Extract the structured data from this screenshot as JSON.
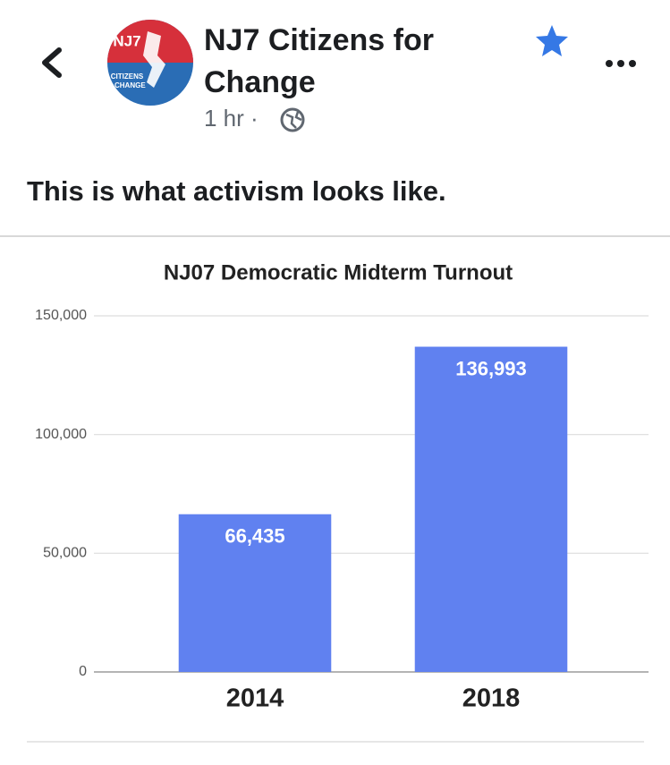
{
  "header": {
    "title": "NJ7 Citizens for Change",
    "time": "1 hr",
    "separator": "·"
  },
  "logo": {
    "top": "NJ7",
    "line1": "CITIZENS",
    "line2": "4 CHANGE"
  },
  "post_text": "This is what activism looks like.",
  "chart_data": {
    "type": "bar",
    "title": "NJ07 Democratic Midterm Turnout",
    "categories": [
      "2014",
      "2018"
    ],
    "values": [
      66435,
      136993
    ],
    "value_labels": [
      "66,435",
      "136,993"
    ],
    "color": "#6081f0",
    "ylim": [
      0,
      150000
    ],
    "yticks": [
      0,
      {
        "value": 50000,
        "label": "50,000"
      },
      {
        "value": 100000,
        "label": "100,000"
      },
      {
        "value": 150000,
        "label": "150,000"
      }
    ],
    "grid": true
  }
}
